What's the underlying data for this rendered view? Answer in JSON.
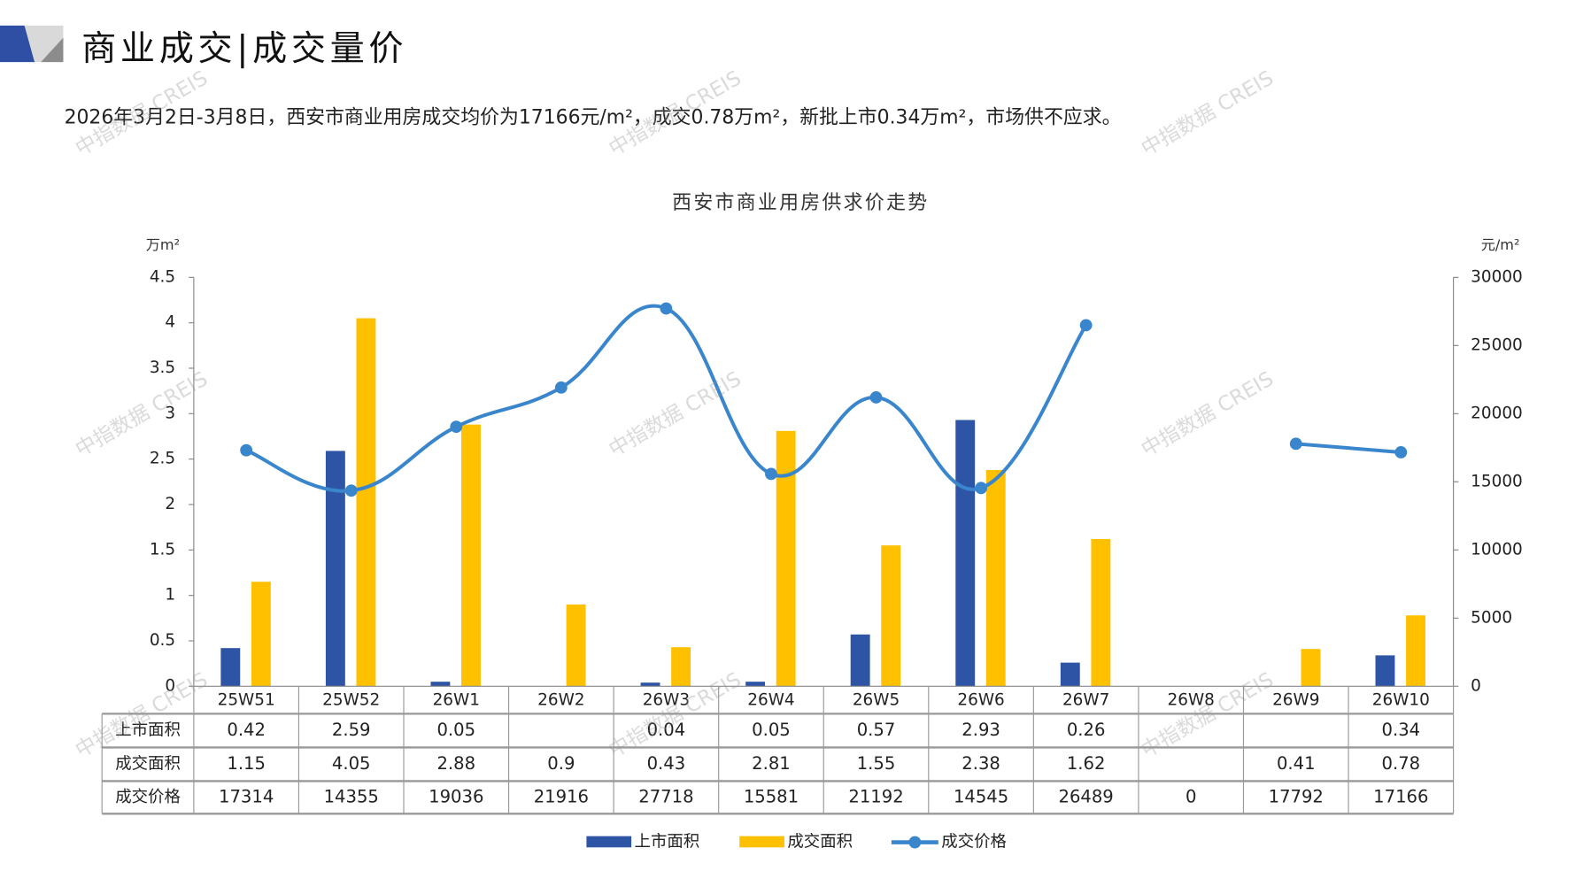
{
  "header": {
    "title": "商业成交|成交量价",
    "subtitle": "2026年3月2日-3月8日，西安市商业用房成交均价为17166元/m²，成交0.78万m²，新批上市0.34万m²，市场供不应求。"
  },
  "watermark": "中指数据 CREIS",
  "colors": {
    "supply": "#2E55A5",
    "deal_area": "#FFC000",
    "price": "#3A86CC",
    "brand_blue": "#2E4FA3",
    "brand_gray": "#BFBFBF"
  },
  "chart_data": {
    "type": "bar+line",
    "title": "西安市商业用房供求价走势",
    "left_unit": "万m²",
    "right_unit": "元/m²",
    "ylim_left": [
      0,
      4.5
    ],
    "yticks_left": [
      "0",
      "0.5",
      "1",
      "1.5",
      "2",
      "2.5",
      "3",
      "3.5",
      "4",
      "4.5"
    ],
    "ylim_right": [
      0,
      30000
    ],
    "yticks_right": [
      "0",
      "5000",
      "10000",
      "15000",
      "20000",
      "25000",
      "30000"
    ],
    "categories": [
      "25W51",
      "25W52",
      "26W1",
      "26W2",
      "26W3",
      "26W4",
      "26W5",
      "26W6",
      "26W7",
      "26W8",
      "26W9",
      "26W10"
    ],
    "series": [
      {
        "name": "上市面积",
        "type": "bar",
        "axis": "left",
        "values": [
          0.42,
          2.59,
          0.05,
          null,
          0.04,
          0.05,
          0.57,
          2.93,
          0.26,
          null,
          null,
          0.34
        ],
        "labels": [
          "0.42",
          "2.59",
          "0.05",
          "",
          "0.04",
          "0.05",
          "0.57",
          "2.93",
          "0.26",
          "",
          "",
          "0.34"
        ]
      },
      {
        "name": "成交面积",
        "type": "bar",
        "axis": "left",
        "values": [
          1.15,
          4.05,
          2.88,
          0.9,
          0.43,
          2.81,
          1.55,
          2.38,
          1.62,
          null,
          0.41,
          0.78
        ],
        "labels": [
          "1.15",
          "4.05",
          "2.88",
          "0.9",
          "0.43",
          "2.81",
          "1.55",
          "2.38",
          "1.62",
          "",
          "0.41",
          "0.78"
        ]
      },
      {
        "name": "成交价格",
        "type": "line",
        "axis": "right",
        "values": [
          17314,
          14355,
          19036,
          21916,
          27718,
          15581,
          21192,
          14545,
          26489,
          0,
          17792,
          17166
        ],
        "labels": [
          "17314",
          "14355",
          "19036",
          "21916",
          "27718",
          "15581",
          "21192",
          "14545",
          "26489",
          "0",
          "17792",
          "17166"
        ]
      }
    ],
    "legend": "bottom"
  }
}
